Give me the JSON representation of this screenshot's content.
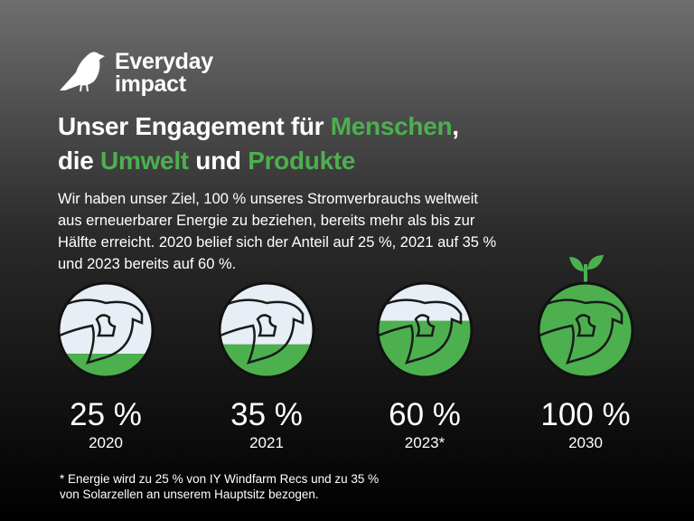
{
  "brand": [
    "Everyday",
    "impact"
  ],
  "title_lines": [
    [
      {
        "text": "Unser Engagement für ",
        "highlight": false
      },
      {
        "text": "Menschen",
        "highlight": true
      },
      {
        "text": ",",
        "highlight": false
      }
    ],
    [
      {
        "text": "die ",
        "highlight": false
      },
      {
        "text": "Umwelt",
        "highlight": true
      },
      {
        "text": " und ",
        "highlight": false
      },
      {
        "text": "Produkte",
        "highlight": true
      }
    ]
  ],
  "body_lines": [
    "Wir haben unser Ziel, 100 % unseres Stromverbrauchs weltweit",
    "aus erneuerbarer Energie zu beziehen, bereits mehr als bis zur",
    "Hälfte erreicht. 2020 belief sich der Anteil auf 25 %, 2021 auf 35 %",
    "und 2023 bereits auf 60 %."
  ],
  "items": [
    {
      "value": 25,
      "label": "25 %",
      "year": "2020"
    },
    {
      "value": 35,
      "label": "35 %",
      "year": "2021"
    },
    {
      "value": 60,
      "label": "60 %",
      "year": "2023*"
    },
    {
      "value": 100,
      "label": "100 %",
      "year": "2030"
    }
  ],
  "footnote_lines": [
    "* Energie wird zu 25 % von IY Windfarm Recs und zu 35 %",
    "von Solarzellen an unserem Hauptsitz bezogen."
  ],
  "highlight_color": "#4cb04f"
}
